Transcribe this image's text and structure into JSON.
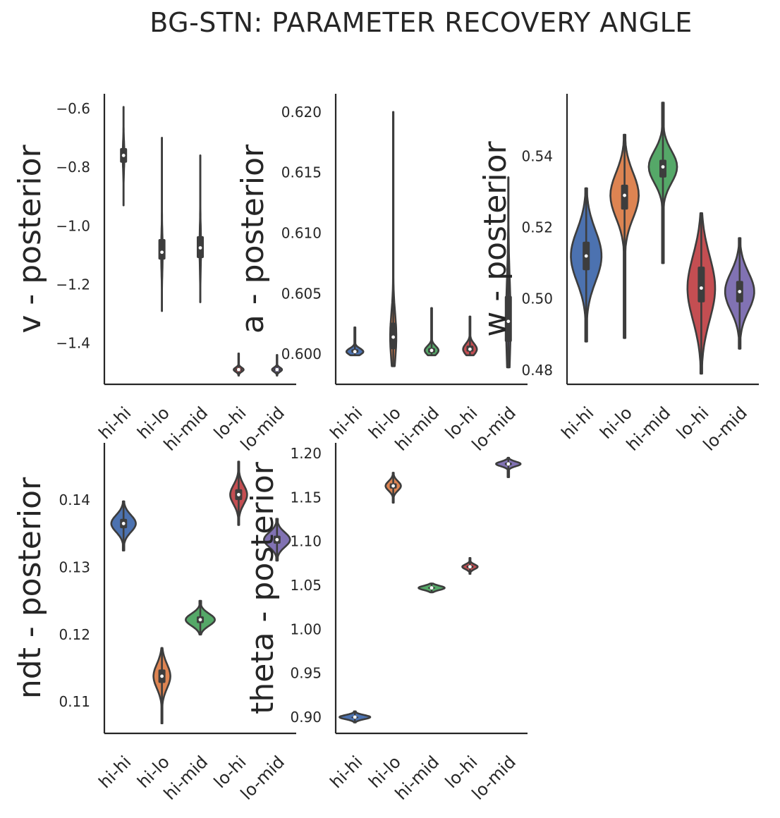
{
  "title": "BG-STN: PARAMETER RECOVERY ANGLE",
  "colors": {
    "hi-hi": "#4c72b0",
    "hi-lo": "#dd8452",
    "hi-mid": "#55a868",
    "lo-hi": "#c44e52",
    "lo-mid": "#8172b3",
    "inner": "#3d3d3d"
  },
  "chart_data": [
    {
      "type": "violin",
      "ylabel": "v - posterior",
      "categories": [
        "hi-hi",
        "hi-lo",
        "hi-mid",
        "lo-hi",
        "lo-mid"
      ],
      "ylim": [
        -1.54,
        -0.55
      ],
      "yticks": [
        -0.6,
        -0.8,
        -1.0,
        -1.2,
        -1.4
      ],
      "ytick_labels": [
        "−0.6",
        "−0.8",
        "−1.0",
        "−1.2",
        "−1.4"
      ],
      "series": [
        {
          "category": "hi-hi",
          "min": -0.93,
          "q1": -0.785,
          "median": -0.76,
          "q3": -0.735,
          "max": -0.595,
          "halfwidth": 0.022
        },
        {
          "category": "hi-lo",
          "min": -1.29,
          "q1": -1.115,
          "median": -1.09,
          "q3": -1.045,
          "max": -0.7,
          "halfwidth": 0.02
        },
        {
          "category": "hi-mid",
          "min": -1.26,
          "q1": -1.11,
          "median": -1.075,
          "q3": -1.035,
          "max": -0.76,
          "halfwidth": 0.02
        },
        {
          "category": "lo-hi",
          "min": -1.51,
          "q1": -1.494,
          "median": -1.49,
          "q3": -1.486,
          "max": -1.435,
          "halfwidth": 0.13
        },
        {
          "category": "lo-mid",
          "min": -1.51,
          "q1": -1.494,
          "median": -1.49,
          "q3": -1.486,
          "max": -1.44,
          "halfwidth": 0.13
        }
      ]
    },
    {
      "type": "violin",
      "ylabel": "a - posterior",
      "categories": [
        "hi-hi",
        "hi-lo",
        "hi-mid",
        "lo-hi",
        "lo-mid"
      ],
      "ylim": [
        0.5975,
        0.6215
      ],
      "yticks": [
        0.6,
        0.605,
        0.61,
        0.615,
        0.62
      ],
      "ytick_labels": [
        "0.600",
        "0.605",
        "0.610",
        "0.615",
        "0.620"
      ],
      "series": [
        {
          "category": "hi-hi",
          "min": 0.5999,
          "q1": 0.6001,
          "median": 0.6002,
          "q3": 0.6004,
          "max": 0.6022,
          "halfwidth": 0.22
        },
        {
          "category": "hi-lo",
          "min": 0.599,
          "q1": 0.6004,
          "median": 0.6014,
          "q3": 0.6026,
          "max": 0.62,
          "halfwidth": 0.08
        },
        {
          "category": "hi-mid",
          "min": 0.5999,
          "q1": 0.6001,
          "median": 0.6003,
          "q3": 0.6005,
          "max": 0.6038,
          "halfwidth": 0.18
        },
        {
          "category": "lo-hi",
          "min": 0.5999,
          "q1": 0.6002,
          "median": 0.6004,
          "q3": 0.6007,
          "max": 0.6031,
          "halfwidth": 0.18
        },
        {
          "category": "lo-mid",
          "min": 0.5989,
          "q1": 0.601,
          "median": 0.6027,
          "q3": 0.6048,
          "max": 0.6146,
          "halfwidth": 0.06
        }
      ]
    },
    {
      "type": "violin",
      "ylabel": "w - posterior",
      "categories": [
        "hi-hi",
        "hi-lo",
        "hi-mid",
        "lo-hi",
        "lo-mid"
      ],
      "ylim": [
        0.476,
        0.5575
      ],
      "yticks": [
        0.48,
        0.5,
        0.52,
        0.54
      ],
      "ytick_labels": [
        "0.48",
        "0.50",
        "0.52",
        "0.54"
      ],
      "series": [
        {
          "category": "hi-hi",
          "min": 0.488,
          "q1": 0.508,
          "median": 0.512,
          "q3": 0.516,
          "max": 0.531,
          "halfwidth": 0.4
        },
        {
          "category": "hi-lo",
          "min": 0.489,
          "q1": 0.525,
          "median": 0.529,
          "q3": 0.532,
          "max": 0.546,
          "halfwidth": 0.37
        },
        {
          "category": "hi-mid",
          "min": 0.51,
          "q1": 0.534,
          "median": 0.537,
          "q3": 0.539,
          "max": 0.555,
          "halfwidth": 0.37
        },
        {
          "category": "lo-hi",
          "min": 0.479,
          "q1": 0.499,
          "median": 0.503,
          "q3": 0.509,
          "max": 0.524,
          "halfwidth": 0.36
        },
        {
          "category": "lo-mid",
          "min": 0.486,
          "q1": 0.499,
          "median": 0.502,
          "q3": 0.505,
          "max": 0.517,
          "halfwidth": 0.38
        }
      ]
    },
    {
      "type": "violin",
      "ylabel": "ndt - posterior",
      "categories": [
        "hi-hi",
        "hi-lo",
        "hi-mid",
        "lo-hi",
        "lo-mid"
      ],
      "ylim": [
        0.1053,
        0.1485
      ],
      "yticks": [
        0.11,
        0.12,
        0.13,
        0.14
      ],
      "ytick_labels": [
        "0.11",
        "0.12",
        "0.13",
        "0.14"
      ],
      "series": [
        {
          "category": "hi-hi",
          "min": 0.1325,
          "q1": 0.1358,
          "median": 0.1365,
          "q3": 0.1372,
          "max": 0.1398,
          "halfwidth": 0.32
        },
        {
          "category": "hi-lo",
          "min": 0.1068,
          "q1": 0.1128,
          "median": 0.1138,
          "q3": 0.1148,
          "max": 0.118,
          "halfwidth": 0.22
        },
        {
          "category": "hi-mid",
          "min": 0.12,
          "q1": 0.1217,
          "median": 0.1222,
          "q3": 0.1227,
          "max": 0.125,
          "halfwidth": 0.38
        },
        {
          "category": "lo-hi",
          "min": 0.1363,
          "q1": 0.14,
          "median": 0.1408,
          "q3": 0.1416,
          "max": 0.1457,
          "halfwidth": 0.22
        },
        {
          "category": "lo-mid",
          "min": 0.131,
          "q1": 0.1335,
          "median": 0.1341,
          "q3": 0.1347,
          "max": 0.1372,
          "halfwidth": 0.34
        }
      ]
    },
    {
      "type": "violin",
      "ylabel": "theta - posterior",
      "categories": [
        "hi-hi",
        "hi-lo",
        "hi-mid",
        "lo-hi",
        "lo-mid"
      ],
      "ylim": [
        0.8815,
        1.212
      ],
      "yticks": [
        0.9,
        0.95,
        1.0,
        1.05,
        1.1,
        1.15,
        1.2
      ],
      "ytick_labels": [
        "0.90",
        "0.95",
        "1.00",
        "1.05",
        "1.10",
        "1.15",
        "1.20"
      ],
      "series": [
        {
          "category": "hi-hi",
          "min": 0.894,
          "q1": 0.8995,
          "median": 0.9,
          "q3": 0.9005,
          "max": 0.9065,
          "halfwidth": 0.4
        },
        {
          "category": "hi-lo",
          "min": 1.144,
          "q1": 1.16,
          "median": 1.163,
          "q3": 1.166,
          "max": 1.178,
          "halfwidth": 0.2
        },
        {
          "category": "hi-mid",
          "min": 1.042,
          "q1": 1.046,
          "median": 1.047,
          "q3": 1.048,
          "max": 1.052,
          "halfwidth": 0.34
        },
        {
          "category": "lo-hi",
          "min": 1.063,
          "q1": 1.0695,
          "median": 1.071,
          "q3": 1.0725,
          "max": 1.081,
          "halfwidth": 0.2
        },
        {
          "category": "lo-mid",
          "min": 1.173,
          "q1": 1.1865,
          "median": 1.188,
          "q3": 1.1895,
          "max": 1.195,
          "halfwidth": 0.32
        }
      ]
    }
  ]
}
